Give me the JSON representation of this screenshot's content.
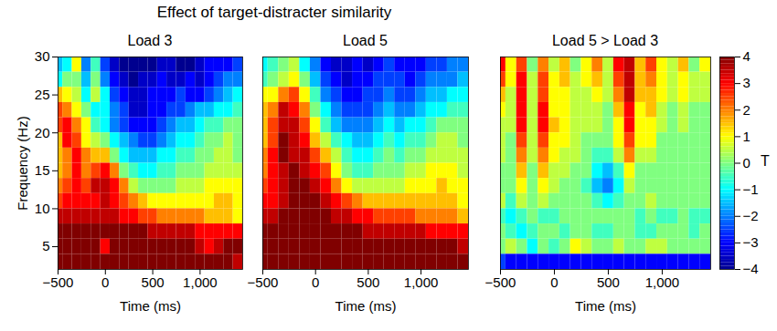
{
  "chart_data": {
    "type": "heatmap",
    "title": "Effect of target-distracter similarity",
    "x": [
      -500,
      -400,
      -300,
      -200,
      -100,
      0,
      100,
      200,
      300,
      400,
      500,
      600,
      700,
      800,
      900,
      1000,
      1100,
      1200,
      1300,
      1400
    ],
    "y": [
      29,
      27,
      25,
      23,
      21,
      19,
      17,
      15,
      13,
      11,
      9,
      7,
      5,
      3
    ],
    "xlim": [
      -500,
      1450
    ],
    "xticks": [
      -500,
      0,
      500,
      1000
    ],
    "ylim": [
      2,
      30
    ],
    "yticks": [
      5,
      10,
      15,
      20,
      25,
      30
    ],
    "colorbar": {
      "range": [
        -4,
        4
      ],
      "ticks": [
        -4,
        -3,
        -2,
        -1,
        0,
        1,
        2,
        3,
        4
      ],
      "label": "T"
    },
    "panels": [
      {
        "title": "Load 3",
        "xlabel": "Time (ms)",
        "ylabel": "Frequency (Hz)",
        "values": [
          [
            -1.5,
            -1,
            1,
            -2,
            -0.5,
            -2.5,
            -3.5,
            -4,
            -4,
            -4,
            -4,
            -3.5,
            -3.5,
            -4,
            -4,
            -3.5,
            -3,
            -3,
            -3,
            -2.5
          ],
          [
            -1,
            0,
            0,
            -1.5,
            0,
            -2,
            -3,
            -3.5,
            -4,
            -3.5,
            -3.5,
            -3,
            -3.5,
            -3.5,
            -3,
            -3.5,
            -3,
            -2.5,
            -2,
            -2
          ],
          [
            1.5,
            1,
            0.5,
            -1,
            0.5,
            -1,
            -2.5,
            -3,
            -3.5,
            -3.5,
            -3,
            -3,
            -3,
            -2.5,
            -3,
            -3,
            -2.5,
            -2,
            -1.5,
            -1
          ],
          [
            2.5,
            2,
            1,
            0,
            -1,
            -1,
            -2,
            -2.5,
            -3.5,
            -3.5,
            -3,
            -3,
            -2.5,
            -2.5,
            -2,
            -1.5,
            -1.5,
            -1,
            -1,
            -0.5
          ],
          [
            2.5,
            3,
            2,
            1,
            -0.5,
            -1,
            -2,
            -2.5,
            -3,
            -3,
            -3,
            -2.5,
            -2,
            -1.5,
            -1.5,
            -1,
            -0.5,
            -0.5,
            0,
            0
          ],
          [
            1.5,
            3,
            2.5,
            1,
            0.5,
            0,
            -1,
            -1.5,
            -2,
            -2.5,
            -2.5,
            -2,
            -1.5,
            -1,
            -1,
            -0.5,
            0,
            0,
            0.5,
            0
          ],
          [
            1.5,
            2,
            3,
            2,
            1.5,
            1.5,
            0,
            -1,
            -1.5,
            -1.5,
            -1.5,
            -1,
            -1,
            -0.5,
            -0.5,
            0,
            0,
            0.5,
            0.5,
            0
          ],
          [
            1.5,
            2,
            3,
            2,
            2.5,
            3,
            2,
            0,
            -0.5,
            -1,
            -1,
            -0.5,
            -0.5,
            0,
            0,
            0,
            0.5,
            0.5,
            0.5,
            0.5
          ],
          [
            2,
            2.5,
            3,
            2.5,
            3.5,
            3.5,
            3,
            2,
            0.5,
            0,
            0,
            0,
            0,
            0.5,
            0.5,
            0.5,
            1,
            1,
            1,
            1
          ],
          [
            2.5,
            3,
            3,
            3,
            3,
            3.5,
            3,
            2.5,
            2,
            1.5,
            1,
            1,
            1,
            1,
            1,
            1,
            1,
            1.5,
            1.5,
            1
          ],
          [
            3.5,
            3.5,
            3.5,
            3.5,
            3.5,
            3.5,
            3.5,
            3,
            3,
            2.5,
            2.5,
            2,
            2,
            2,
            2,
            2,
            1.5,
            1.5,
            1.5,
            1
          ],
          [
            4,
            4,
            4,
            4,
            4,
            4,
            4,
            4,
            4,
            4,
            3.5,
            3.5,
            3.5,
            3.5,
            3.5,
            3,
            3,
            3,
            3,
            3
          ],
          [
            4,
            4,
            4,
            4,
            4,
            3,
            4,
            4,
            4,
            4,
            4,
            4,
            4,
            4,
            4,
            3.5,
            3,
            3.5,
            4,
            4
          ],
          [
            4,
            4,
            4,
            4,
            4,
            4,
            4,
            4,
            4,
            4,
            4,
            4,
            4,
            4,
            4,
            4,
            4,
            4,
            4,
            3.5
          ]
        ]
      },
      {
        "title": "Load 5",
        "xlabel": "Time (ms)",
        "tick_labels": "x",
        "values": [
          [
            -1,
            -0.5,
            0,
            0.5,
            -1,
            -2,
            -3,
            -3.5,
            -3.5,
            -3,
            -3.5,
            -3,
            -2.5,
            -3,
            -3,
            -3,
            -2.5,
            -2.5,
            -2,
            -2
          ],
          [
            -0.5,
            0,
            0.5,
            1,
            0,
            -1.5,
            -2.5,
            -3,
            -3.5,
            -3,
            -3,
            -2.5,
            -2.5,
            -2.5,
            -3,
            -2.5,
            -2,
            -2,
            -2,
            -1.5
          ],
          [
            1,
            1,
            2,
            2.5,
            1,
            -0.5,
            -2,
            -2.5,
            -3,
            -3,
            -2.5,
            -2.5,
            -2,
            -2.5,
            -2.5,
            -2,
            -1.5,
            -1.5,
            -1,
            -1
          ],
          [
            1.5,
            2,
            3.5,
            3,
            2,
            0,
            -1,
            -2,
            -2.5,
            -2.5,
            -2.5,
            -2,
            -1.5,
            -2,
            -2,
            -1.5,
            -1,
            -1,
            -0.5,
            -0.5
          ],
          [
            1.5,
            2.5,
            3.5,
            3.5,
            2.5,
            1,
            -0.5,
            -1.5,
            -2,
            -2,
            -2,
            -1.5,
            -1,
            -1.5,
            -1,
            -1,
            -0.5,
            0,
            0,
            0
          ],
          [
            1.5,
            2.5,
            4,
            3.5,
            3,
            1.5,
            0.5,
            -0.5,
            -1,
            -1.5,
            -1.5,
            -1,
            -0.5,
            -1,
            -0.5,
            -0.5,
            0,
            0.5,
            0.5,
            0
          ],
          [
            2,
            3,
            4,
            3.5,
            3.5,
            2.5,
            1.5,
            0.5,
            -0.5,
            -1,
            -1,
            -0.5,
            0,
            -0.5,
            0,
            0,
            0.5,
            0.5,
            0.5,
            0.5
          ],
          [
            2,
            3,
            3.5,
            4,
            3.5,
            3,
            2.5,
            1,
            0,
            -0.5,
            -0.5,
            0,
            0,
            0,
            0.5,
            0.5,
            1,
            1,
            1,
            0.5
          ],
          [
            2.5,
            3,
            3.5,
            4,
            4,
            3.5,
            3,
            2,
            1,
            0.5,
            0.5,
            0.5,
            0.5,
            0.5,
            1,
            1,
            1,
            1.5,
            1,
            1
          ],
          [
            3,
            3,
            3.5,
            4,
            4,
            4,
            3.5,
            3,
            2.5,
            2,
            1.5,
            1.5,
            1.5,
            1.5,
            1.5,
            1.5,
            1.5,
            1.5,
            1.5,
            1
          ],
          [
            3.5,
            3.5,
            4,
            4,
            4,
            4,
            4,
            3.5,
            3.5,
            3,
            3,
            2.5,
            2.5,
            2.5,
            2.5,
            2,
            2,
            2,
            2,
            1.5
          ],
          [
            4,
            4,
            4,
            4,
            4,
            4,
            4,
            4,
            4,
            4,
            3.5,
            3.5,
            3.5,
            3.5,
            3.5,
            3.5,
            3,
            3,
            3,
            3
          ],
          [
            4,
            4,
            4,
            4,
            4,
            4,
            4,
            4,
            4,
            4,
            4,
            4,
            4,
            4,
            4,
            4,
            4,
            4,
            4,
            3.5
          ],
          [
            4,
            4,
            4,
            4,
            4,
            4,
            4,
            4,
            4,
            4,
            4,
            4,
            4,
            4,
            4,
            4,
            4,
            4,
            4,
            4
          ]
        ]
      },
      {
        "title": "Load 5 > Load 3",
        "xlabel": "Time (ms)",
        "tick_labels": "x",
        "values": [
          [
            3,
            1,
            2.5,
            0,
            2,
            0.5,
            1.5,
            0,
            1,
            2,
            0.5,
            3,
            3.5,
            1.5,
            2.5,
            1,
            0.5,
            1.5,
            0,
            1
          ],
          [
            2.5,
            1,
            3,
            0.5,
            2.5,
            1,
            1.5,
            0.5,
            1,
            1.5,
            0.5,
            2.5,
            3.5,
            1.5,
            2,
            1,
            0.5,
            1,
            0.5,
            0.5
          ],
          [
            1.5,
            0.5,
            3,
            0.5,
            2.5,
            1,
            1,
            0.5,
            0.5,
            1,
            0.5,
            2,
            3.5,
            1.5,
            1.5,
            1,
            0.5,
            1,
            0.5,
            0.5
          ],
          [
            1,
            0.5,
            3,
            0.5,
            3,
            1,
            1,
            0.5,
            0.5,
            0.5,
            0,
            1.5,
            3,
            1,
            1.5,
            0.5,
            0,
            0.5,
            0,
            0
          ],
          [
            0.5,
            0.5,
            3,
            0.5,
            3,
            1.5,
            1,
            0.5,
            0.5,
            0.5,
            0,
            1,
            3,
            1,
            1,
            0.5,
            0,
            0.5,
            0,
            0
          ],
          [
            0.5,
            0,
            2.5,
            0.5,
            2.5,
            1,
            1,
            0.5,
            0,
            0,
            0,
            1,
            2.5,
            1,
            1,
            0,
            0,
            0,
            0,
            0
          ],
          [
            0.5,
            0,
            2,
            0.5,
            2,
            1,
            0.5,
            0.5,
            0,
            -0.5,
            -0.5,
            0.5,
            2,
            0.5,
            0.5,
            0,
            0,
            0,
            0,
            0
          ],
          [
            0,
            0,
            1.5,
            0,
            1.5,
            0.5,
            0.5,
            0,
            0,
            -1,
            -1.5,
            -0.5,
            1,
            0,
            0,
            0,
            0,
            0,
            0,
            0
          ],
          [
            0,
            0,
            1,
            0,
            1,
            0.5,
            0,
            0,
            -0.5,
            -1.5,
            -2,
            -1,
            0.5,
            0,
            0,
            0,
            0,
            0,
            0,
            0
          ],
          [
            0.5,
            -0.5,
            0.5,
            0,
            0.5,
            0,
            0,
            0,
            0,
            -0.5,
            -1,
            -0.5,
            0,
            0,
            0.5,
            0,
            0,
            0,
            0,
            0
          ],
          [
            -0.5,
            -1,
            -0.5,
            0,
            -0.5,
            -0.5,
            0,
            0,
            0,
            0,
            0,
            0,
            0,
            -0.5,
            0,
            -0.5,
            -0.5,
            0,
            -0.5,
            -0.5
          ],
          [
            0,
            -0.5,
            -1,
            -0.5,
            0,
            0,
            -0.5,
            0,
            0,
            -0.5,
            -0.5,
            0,
            0,
            -0.5,
            -0.5,
            0,
            0,
            0,
            -0.5,
            0
          ],
          [
            0,
            0.5,
            0,
            -1,
            0,
            -0.5,
            0,
            1,
            0.5,
            0,
            0,
            0.5,
            0,
            0,
            0.5,
            0.5,
            0,
            0,
            0,
            0
          ],
          [
            -2.5,
            -3,
            -3,
            -3,
            -3,
            -3,
            -3,
            -3,
            -3,
            -3,
            -3,
            -3,
            -3,
            -3,
            -3,
            -3,
            -3,
            -3,
            -3,
            -3
          ]
        ]
      }
    ]
  }
}
